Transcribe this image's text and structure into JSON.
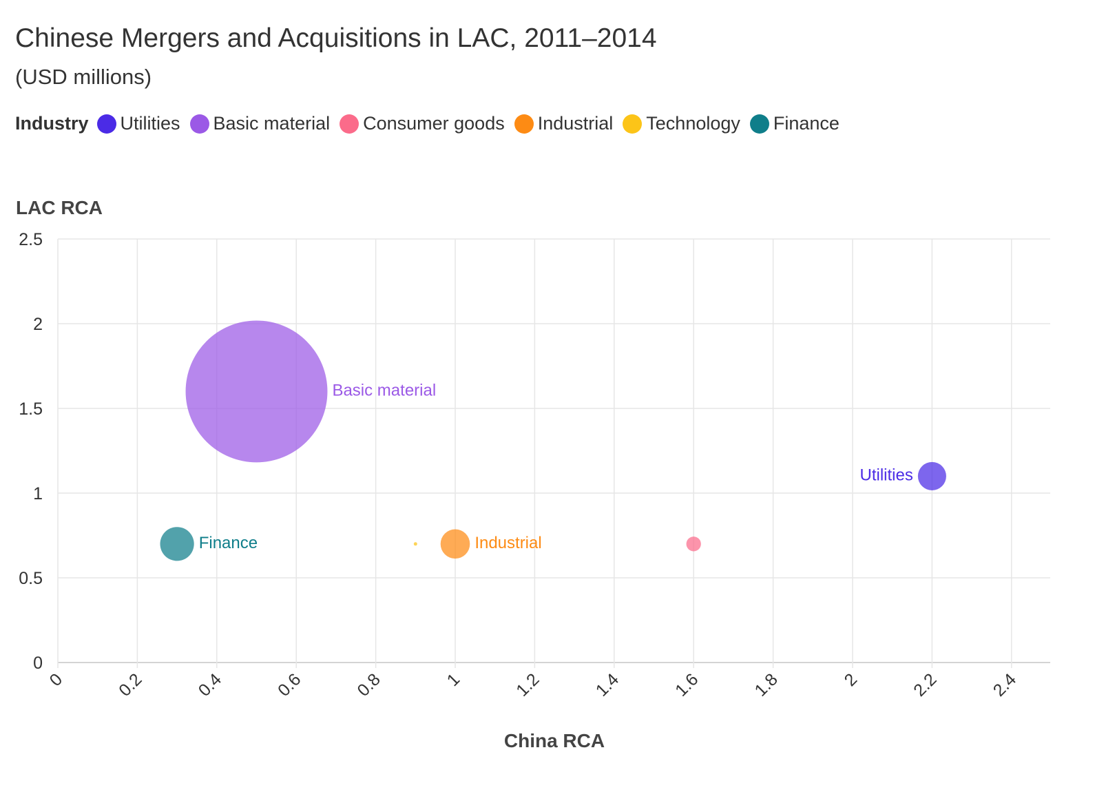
{
  "chart_data": {
    "type": "scatter",
    "title": "Chinese Mergers and Acquisitions in LAC, 2011–2014",
    "subtitle": "(USD millions)",
    "legend_title": "Industry",
    "legend_placement": "top-left",
    "xlabel": "China RCA",
    "ylabel": "LAC RCA",
    "xlim": [
      0,
      2.5
    ],
    "ylim": [
      0,
      2.5
    ],
    "xticks": [
      "0",
      "0.2",
      "0.4",
      "0.6",
      "0.8",
      "1",
      "1.2",
      "1.4",
      "1.6",
      "1.8",
      "2",
      "2.2",
      "2.4"
    ],
    "yticks": [
      "0",
      "0.5",
      "1",
      "1.5",
      "2",
      "2.5"
    ],
    "grid": true,
    "size_encoding": "USD millions",
    "series": [
      {
        "name": "Utilities",
        "color": "#4b2be6",
        "x": 2.2,
        "y": 1.1,
        "size": 390,
        "label": "Utilities",
        "label_side": "left"
      },
      {
        "name": "Basic material",
        "color": "#9b59e6",
        "x": 0.5,
        "y": 1.6,
        "size": 9800,
        "label": "Basic material",
        "label_side": "right"
      },
      {
        "name": "Consumer goods",
        "color": "#fb6b8a",
        "x": 1.6,
        "y": 0.7,
        "size": 105,
        "label": "",
        "label_side": "none"
      },
      {
        "name": "Industrial",
        "color": "#fd8b14",
        "x": 1.0,
        "y": 0.7,
        "size": 420,
        "label": "Industrial",
        "label_side": "right"
      },
      {
        "name": "Technology",
        "color": "#fcc418",
        "x": 0.9,
        "y": 0.7,
        "size": 3,
        "label": "",
        "label_side": "none"
      },
      {
        "name": "Finance",
        "color": "#0f7e8a",
        "x": 0.3,
        "y": 0.7,
        "size": 560,
        "label": "Finance",
        "label_side": "right"
      }
    ]
  }
}
